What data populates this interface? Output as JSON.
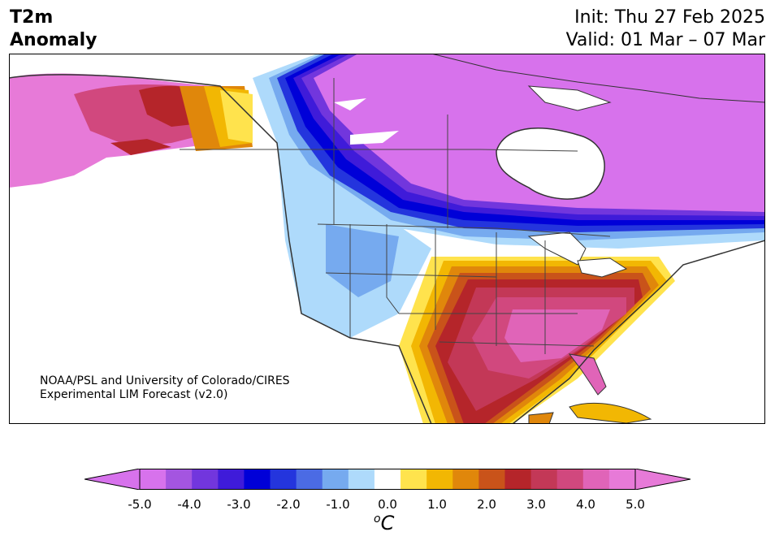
{
  "title": {
    "left_line1": "T2m",
    "left_line2": "Anomaly",
    "right_line1": "Init: Thu 27 Feb 2025",
    "right_line2": "Valid: 01 Mar – 07 Mar"
  },
  "credit": {
    "line1": "NOAA/PSL and University of Colorado/CIRES",
    "line2": "Experimental LIM Forecast (v2.0)"
  },
  "colorbar": {
    "unit_sup": "o",
    "unit_base": "C",
    "ticks": [
      "-5.0",
      "-4.0",
      "-3.0",
      "-2.0",
      "-1.0",
      "0.0",
      "1.0",
      "2.0",
      "3.0",
      "4.0",
      "5.0"
    ],
    "levels": [
      -5.0,
      -4.5,
      -4.0,
      -3.5,
      -3.0,
      -2.5,
      -2.0,
      -1.5,
      -1.0,
      -0.5,
      0.5,
      1.0,
      1.5,
      2.0,
      2.5,
      3.0,
      3.5,
      4.0,
      4.5,
      5.0
    ],
    "colors": [
      "#d772ec",
      "#a455e0",
      "#7236dd",
      "#3f1bd9",
      "#0000d8",
      "#2435dd",
      "#4b6be4",
      "#76aaef",
      "#aedafb",
      "#ffffff",
      "#ffe34d",
      "#f2b703",
      "#e0870b",
      "#c9531a",
      "#b5252a",
      "#c33857",
      "#d1487e",
      "#e064b8",
      "#e77ad8"
    ]
  },
  "legend_colors": {
    "over": "#e77ad8",
    "under": "#d772ec",
    "land_neutral": "#ffffff",
    "border": "#333333"
  }
}
